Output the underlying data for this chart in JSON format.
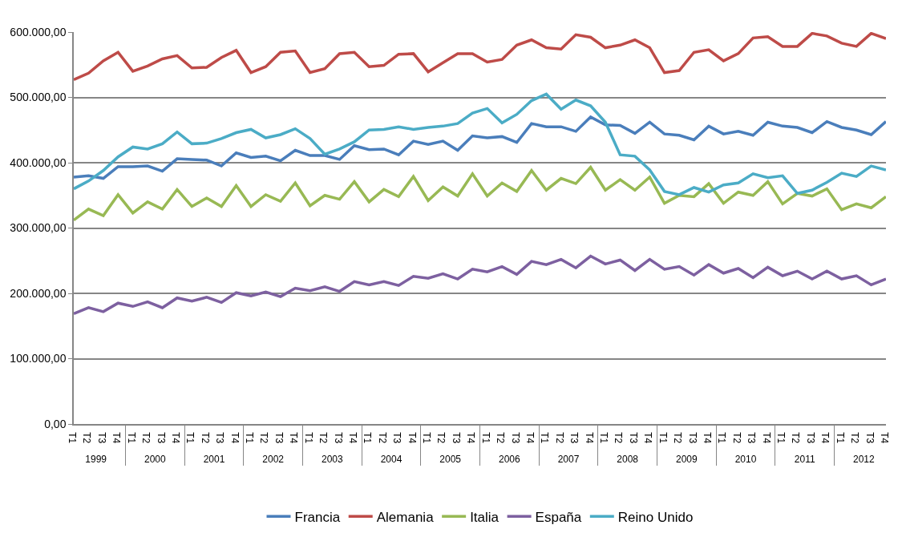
{
  "chart_data": {
    "type": "line",
    "categories": [
      "T1",
      "T2",
      "T3",
      "T4",
      "T1",
      "T2",
      "T3",
      "T4",
      "T1",
      "T2",
      "T3",
      "T4",
      "T1",
      "T2",
      "T3",
      "T4",
      "T1",
      "T2",
      "T3",
      "T4",
      "T1",
      "T2",
      "T3",
      "T4",
      "T1",
      "T2",
      "T3",
      "T4",
      "T1",
      "T2",
      "T3",
      "T4",
      "T1",
      "T2",
      "T3",
      "T4",
      "T1",
      "T2",
      "T3",
      "T4",
      "T1",
      "T2",
      "T3",
      "T4",
      "T1",
      "T2",
      "T3",
      "T4",
      "T1",
      "T2",
      "T3",
      "T4",
      "T1",
      "T2",
      "T3",
      "T4"
    ],
    "annotations": [
      "1999",
      "2000",
      "2001",
      "2002",
      "2003",
      "2004",
      "2005",
      "2006",
      "2007",
      "2008",
      "2009",
      "2010",
      "2011",
      "2012"
    ],
    "ylim": [
      0,
      600000
    ],
    "yticks": [
      {
        "value": 0,
        "label": "0,00"
      },
      {
        "value": 100000,
        "label": "100.000,00"
      },
      {
        "value": 200000,
        "label": "200.000,00"
      },
      {
        "value": 300000,
        "label": "300.000,00"
      },
      {
        "value": 400000,
        "label": "400.000,00"
      },
      {
        "value": 500000,
        "label": "500.000,00"
      },
      {
        "value": 600000,
        "label": "600.000,00"
      }
    ],
    "grid": "y",
    "legend": "bottom",
    "marker": "none",
    "line_style": "solid",
    "series": [
      {
        "name": "Francia",
        "color": "#4a7ebb",
        "values": [
          378000,
          380000,
          376000,
          394000,
          394000,
          395000,
          387000,
          406000,
          405000,
          404000,
          395000,
          415000,
          408000,
          410000,
          403000,
          419000,
          411000,
          411000,
          405000,
          426000,
          420000,
          421000,
          412000,
          433000,
          428000,
          433000,
          419000,
          441000,
          438000,
          440000,
          431000,
          460000,
          455000,
          455000,
          448000,
          470000,
          458000,
          457000,
          445000,
          462000,
          444000,
          442000,
          435000,
          456000,
          444000,
          448000,
          442000,
          462000,
          456000,
          454000,
          446000,
          463000,
          454000,
          450000,
          443000,
          463000
        ]
      },
      {
        "name": "Alemania",
        "color": "#be4b48",
        "values": [
          527000,
          537000,
          556000,
          569000,
          540000,
          548000,
          559000,
          564000,
          545000,
          546000,
          561000,
          572000,
          538000,
          547000,
          569000,
          571000,
          538000,
          544000,
          567000,
          569000,
          547000,
          549000,
          566000,
          567000,
          539000,
          553000,
          567000,
          567000,
          554000,
          558000,
          580000,
          588000,
          576000,
          574000,
          596000,
          592000,
          576000,
          580000,
          588000,
          576000,
          538000,
          541000,
          569000,
          573000,
          556000,
          567000,
          591000,
          593000,
          578000,
          578000,
          598000,
          594000,
          583000,
          578000,
          598000,
          590000
        ]
      },
      {
        "name": "Italia",
        "color": "#98b954",
        "values": [
          312000,
          329000,
          319000,
          351000,
          323000,
          340000,
          329000,
          359000,
          333000,
          346000,
          333000,
          365000,
          333000,
          351000,
          341000,
          369000,
          334000,
          350000,
          344000,
          371000,
          340000,
          359000,
          348000,
          379000,
          342000,
          363000,
          349000,
          383000,
          349000,
          369000,
          356000,
          388000,
          358000,
          376000,
          368000,
          393000,
          358000,
          374000,
          358000,
          378000,
          338000,
          350000,
          348000,
          368000,
          338000,
          355000,
          350000,
          371000,
          337000,
          353000,
          349000,
          360000,
          328000,
          337000,
          331000,
          348000
        ]
      },
      {
        "name": "España",
        "color": "#7d60a0",
        "values": [
          169000,
          178000,
          172000,
          185000,
          180000,
          187000,
          178000,
          193000,
          188000,
          194000,
          186000,
          201000,
          196000,
          202000,
          195000,
          208000,
          204000,
          210000,
          203000,
          218000,
          213000,
          218000,
          212000,
          226000,
          223000,
          230000,
          222000,
          237000,
          233000,
          241000,
          229000,
          249000,
          244000,
          252000,
          239000,
          257000,
          245000,
          251000,
          235000,
          252000,
          237000,
          241000,
          228000,
          244000,
          231000,
          238000,
          224000,
          240000,
          227000,
          234000,
          222000,
          234000,
          222000,
          227000,
          213000,
          222000
        ]
      },
      {
        "name": "Reino Unido",
        "color": "#4bacc6",
        "values": [
          360000,
          372000,
          388000,
          409000,
          424000,
          421000,
          429000,
          447000,
          429000,
          430000,
          437000,
          446000,
          451000,
          438000,
          443000,
          452000,
          437000,
          413000,
          421000,
          432000,
          450000,
          451000,
          455000,
          451000,
          454000,
          456000,
          460000,
          476000,
          483000,
          461000,
          474000,
          495000,
          505000,
          482000,
          496000,
          487000,
          462000,
          412000,
          410000,
          389000,
          356000,
          351000,
          362000,
          355000,
          366000,
          369000,
          383000,
          377000,
          380000,
          353000,
          358000,
          370000,
          384000,
          379000,
          395000,
          389000
        ]
      }
    ]
  }
}
